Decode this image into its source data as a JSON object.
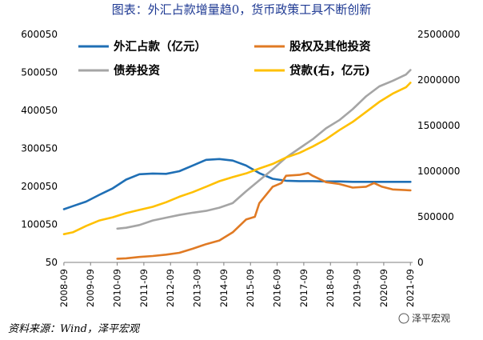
{
  "title": "图表：外汇占款增量趋0，货币政策工具不断创新",
  "source": "资料来源：Wind，泽平宏观",
  "watermark": "泽平宏观",
  "chart_data": {
    "type": "line",
    "x_ticks": [
      "2008-09",
      "2009-09",
      "2010-09",
      "2011-09",
      "2012-09",
      "2013-09",
      "2014-09",
      "2015-09",
      "2016-09",
      "2017-09",
      "2018-09",
      "2019-09",
      "2020-09",
      "2021-09"
    ],
    "x_range": [
      2008.67,
      2021.75
    ],
    "y_left": {
      "ticks": [
        50,
        100050,
        200050,
        300050,
        400050,
        500050,
        600050
      ],
      "range": [
        50,
        600050
      ]
    },
    "y_right": {
      "ticks": [
        0,
        500000,
        1000000,
        1500000,
        2000000,
        2500000
      ],
      "range": [
        0,
        2500000
      ]
    },
    "series": [
      {
        "name": "外汇占款（亿元）",
        "axis": "left",
        "color": "#1f6fb5",
        "points": [
          [
            2008.67,
            140000
          ],
          [
            2009.0,
            148000
          ],
          [
            2009.5,
            160000
          ],
          [
            2010.0,
            178000
          ],
          [
            2010.5,
            195000
          ],
          [
            2011.0,
            218000
          ],
          [
            2011.5,
            232000
          ],
          [
            2012.0,
            234000
          ],
          [
            2012.5,
            233000
          ],
          [
            2013.0,
            240000
          ],
          [
            2013.5,
            255000
          ],
          [
            2014.0,
            270000
          ],
          [
            2014.5,
            272000
          ],
          [
            2015.0,
            268000
          ],
          [
            2015.5,
            255000
          ],
          [
            2016.0,
            235000
          ],
          [
            2016.5,
            220000
          ],
          [
            2017.0,
            215000
          ],
          [
            2017.5,
            214000
          ],
          [
            2018.0,
            214000
          ],
          [
            2018.5,
            213000
          ],
          [
            2019.0,
            213000
          ],
          [
            2019.5,
            212000
          ],
          [
            2020.0,
            212000
          ],
          [
            2020.5,
            212000
          ],
          [
            2021.0,
            212000
          ],
          [
            2021.67,
            212000
          ]
        ]
      },
      {
        "name": "股权及其他投资",
        "axis": "right",
        "color": "#e07a24",
        "points": [
          [
            2010.67,
            40000
          ],
          [
            2011.0,
            45000
          ],
          [
            2011.5,
            60000
          ],
          [
            2012.0,
            70000
          ],
          [
            2012.5,
            85000
          ],
          [
            2013.0,
            105000
          ],
          [
            2013.5,
            150000
          ],
          [
            2014.0,
            200000
          ],
          [
            2014.5,
            240000
          ],
          [
            2015.0,
            330000
          ],
          [
            2015.5,
            470000
          ],
          [
            2015.83,
            500000
          ],
          [
            2016.0,
            650000
          ],
          [
            2016.5,
            830000
          ],
          [
            2016.83,
            870000
          ],
          [
            2017.0,
            950000
          ],
          [
            2017.5,
            960000
          ],
          [
            2017.83,
            980000
          ],
          [
            2018.0,
            950000
          ],
          [
            2018.5,
            880000
          ],
          [
            2019.0,
            860000
          ],
          [
            2019.5,
            820000
          ],
          [
            2020.0,
            830000
          ],
          [
            2020.3,
            870000
          ],
          [
            2020.6,
            830000
          ],
          [
            2021.0,
            800000
          ],
          [
            2021.67,
            790000
          ]
        ]
      },
      {
        "name": "债券投资",
        "axis": "right",
        "color": "#a5a5a5",
        "points": [
          [
            2010.67,
            370000
          ],
          [
            2011.0,
            380000
          ],
          [
            2011.5,
            410000
          ],
          [
            2012.0,
            460000
          ],
          [
            2012.5,
            490000
          ],
          [
            2013.0,
            520000
          ],
          [
            2013.5,
            545000
          ],
          [
            2014.0,
            565000
          ],
          [
            2014.5,
            600000
          ],
          [
            2015.0,
            650000
          ],
          [
            2015.5,
            780000
          ],
          [
            2016.0,
            900000
          ],
          [
            2016.5,
            1020000
          ],
          [
            2017.0,
            1150000
          ],
          [
            2017.5,
            1250000
          ],
          [
            2018.0,
            1350000
          ],
          [
            2018.5,
            1470000
          ],
          [
            2019.0,
            1560000
          ],
          [
            2019.5,
            1680000
          ],
          [
            2020.0,
            1820000
          ],
          [
            2020.5,
            1930000
          ],
          [
            2021.0,
            1990000
          ],
          [
            2021.5,
            2060000
          ],
          [
            2021.67,
            2110000
          ]
        ]
      },
      {
        "name": "贷款(右，亿元)",
        "axis": "right",
        "color": "#ffc000",
        "points": [
          [
            2008.67,
            310000
          ],
          [
            2009.0,
            330000
          ],
          [
            2009.5,
            400000
          ],
          [
            2010.0,
            460000
          ],
          [
            2010.5,
            495000
          ],
          [
            2011.0,
            540000
          ],
          [
            2011.5,
            575000
          ],
          [
            2012.0,
            610000
          ],
          [
            2012.5,
            660000
          ],
          [
            2013.0,
            720000
          ],
          [
            2013.5,
            770000
          ],
          [
            2014.0,
            830000
          ],
          [
            2014.5,
            890000
          ],
          [
            2015.0,
            935000
          ],
          [
            2015.5,
            975000
          ],
          [
            2016.0,
            1030000
          ],
          [
            2016.5,
            1080000
          ],
          [
            2017.0,
            1150000
          ],
          [
            2017.5,
            1200000
          ],
          [
            2018.0,
            1270000
          ],
          [
            2018.5,
            1350000
          ],
          [
            2019.0,
            1450000
          ],
          [
            2019.5,
            1540000
          ],
          [
            2020.0,
            1650000
          ],
          [
            2020.5,
            1760000
          ],
          [
            2021.0,
            1850000
          ],
          [
            2021.5,
            1920000
          ],
          [
            2021.67,
            1970000
          ]
        ]
      }
    ],
    "legend": {
      "placement": "top",
      "labels": [
        "外汇占款（亿元）",
        "股权及其他投资",
        "债券投资",
        "贷款(右，亿元)"
      ]
    }
  }
}
